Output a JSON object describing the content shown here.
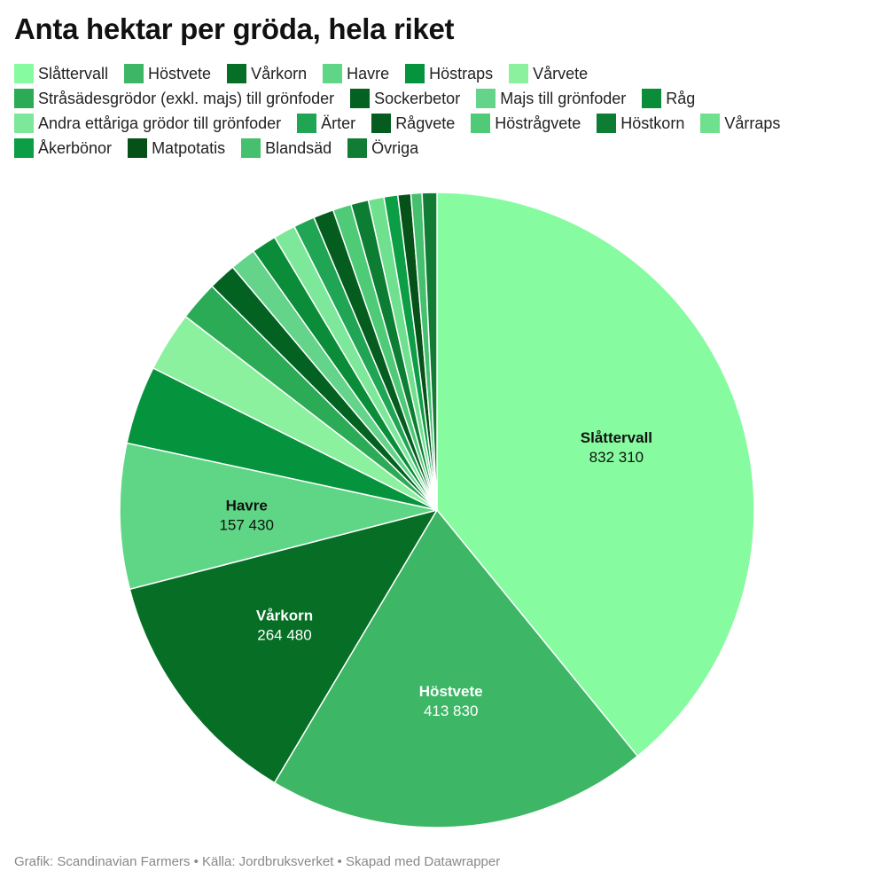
{
  "title": "Anta hektar per gröda, hela riket",
  "footer": "Grafik: Scandinavian Farmers • Källa: Jordbruksverket • Skapad med Datawrapper",
  "chart_data": {
    "type": "pie",
    "title": "Anta hektar per gröda, hela riket",
    "start_angle_deg": 0,
    "direction": "clockwise",
    "slices": [
      {
        "label": "Slåttervall",
        "value": 832310,
        "color": "#86fb9f",
        "label_text": "832 310",
        "label_dark": true
      },
      {
        "label": "Höstvete",
        "value": 413830,
        "color": "#3db665",
        "label_text": "413 830",
        "label_dark": false
      },
      {
        "label": "Vårkorn",
        "value": 264480,
        "color": "#066e25",
        "label_text": "264 480",
        "label_dark": false
      },
      {
        "label": "Havre",
        "value": 157430,
        "color": "#5fd686",
        "label_text": "157 430",
        "label_dark": true
      },
      {
        "label": "Höstraps",
        "value": 85000,
        "color": "#05933e",
        "label_text": "",
        "label_dark": false
      },
      {
        "label": "Vårvete",
        "value": 65000,
        "color": "#8cf19e",
        "label_text": "",
        "label_dark": true
      },
      {
        "label": "Stråsädesgrödor (exkl. majs) till grönfoder",
        "value": 43000,
        "color": "#2cab57",
        "label_text": "",
        "label_dark": false
      },
      {
        "label": "Sockerbetor",
        "value": 30000,
        "color": "#036222",
        "label_text": "",
        "label_dark": false
      },
      {
        "label": "Majs till grönfoder",
        "value": 28000,
        "color": "#63d48a",
        "label_text": "",
        "label_dark": true
      },
      {
        "label": "Råg",
        "value": 27000,
        "color": "#0a8c38",
        "label_text": "",
        "label_dark": false
      },
      {
        "label": "Andra ettåriga grödor till grönfoder",
        "value": 24000,
        "color": "#7ee89a",
        "label_text": "",
        "label_dark": true
      },
      {
        "label": "Ärter",
        "value": 23000,
        "color": "#1fa553",
        "label_text": "",
        "label_dark": false
      },
      {
        "label": "Rågvete",
        "value": 22000,
        "color": "#045c1e",
        "label_text": "",
        "label_dark": false
      },
      {
        "label": "Höstrågvete",
        "value": 20000,
        "color": "#4fcb78",
        "label_text": "",
        "label_dark": true
      },
      {
        "label": "Höstkorn",
        "value": 19000,
        "color": "#0c7d33",
        "label_text": "",
        "label_dark": false
      },
      {
        "label": "Vårraps",
        "value": 17000,
        "color": "#6fe08e",
        "label_text": "",
        "label_dark": true
      },
      {
        "label": "Åkerbönor",
        "value": 15000,
        "color": "#0b9e44",
        "label_text": "",
        "label_dark": false
      },
      {
        "label": "Matpotatis",
        "value": 14000,
        "color": "#055118",
        "label_text": "",
        "label_dark": false
      },
      {
        "label": "Blandsäd",
        "value": 12000,
        "color": "#45c06e",
        "label_text": "",
        "label_dark": true
      },
      {
        "label": "Övriga",
        "value": 16000,
        "color": "#117c34",
        "label_text": "",
        "label_dark": false
      }
    ],
    "legend_placement": "top"
  }
}
